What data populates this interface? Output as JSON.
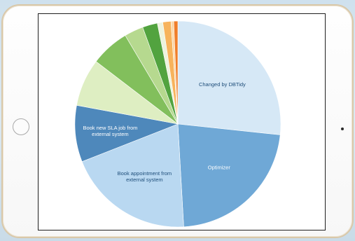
{
  "chart_data": {
    "type": "pie",
    "title": "",
    "colors": {
      "dark_label": "#1f4e7a",
      "light_label": "#ffffff"
    },
    "slices": [
      {
        "label": "Changed by DBTidy",
        "value": 25.0,
        "color": "#d6e8f6",
        "label_color": "dark"
      },
      {
        "label": "Optimizer",
        "value": 21.0,
        "color": "#6fa8d6",
        "label_color": "light"
      },
      {
        "label": "Book appointment from external system",
        "value": 18.7,
        "color": "#b9d8f1",
        "label_color": "dark"
      },
      {
        "label": "Book new SLA job from external system",
        "value": 8.3,
        "color": "#4e88bb",
        "label_color": "light"
      },
      {
        "label": "",
        "value": 7.0,
        "color": "#deeec2",
        "label_color": "dark"
      },
      {
        "label": "",
        "value": 5.7,
        "color": "#82bf5c",
        "label_color": "dark"
      },
      {
        "label": "",
        "value": 2.8,
        "color": "#b6d98f",
        "label_color": "dark"
      },
      {
        "label": "",
        "value": 2.2,
        "color": "#52a33f",
        "label_color": "dark"
      },
      {
        "label": "",
        "value": 0.8,
        "color": "#edf3df",
        "label_color": "dark"
      },
      {
        "label": "",
        "value": 1.2,
        "color": "#f7b35c",
        "label_color": "dark"
      },
      {
        "label": "",
        "value": 0.4,
        "color": "#fbd7a7",
        "label_color": "dark"
      },
      {
        "label": "",
        "value": 0.6,
        "color": "#f07e2a",
        "label_color": "dark"
      }
    ]
  }
}
